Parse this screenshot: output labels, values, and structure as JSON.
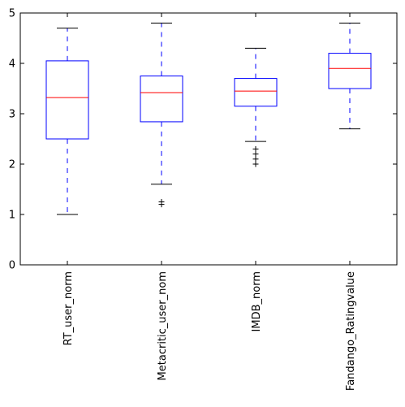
{
  "chart_data": {
    "type": "box",
    "title": "",
    "xlabel": "",
    "ylabel": "",
    "ylim": [
      0,
      5
    ],
    "yticks": [
      0,
      1,
      2,
      3,
      4,
      5
    ],
    "grid": false,
    "categories": [
      "RT_user_norm",
      "Metacritic_user_nom",
      "IMDB_norm",
      "Fandango_Ratingvalue"
    ],
    "boxes": [
      {
        "name": "RT_user_norm",
        "whisker_low": 1.0,
        "q1": 2.5,
        "median": 3.32,
        "q3": 4.05,
        "whisker_high": 4.7,
        "outliers": []
      },
      {
        "name": "Metacritic_user_nom",
        "whisker_low": 1.6,
        "q1": 2.84,
        "median": 3.42,
        "q3": 3.75,
        "whisker_high": 4.8,
        "outliers": [
          1.2,
          1.25
        ]
      },
      {
        "name": "IMDB_norm",
        "whisker_low": 2.45,
        "q1": 3.15,
        "median": 3.45,
        "q3": 3.7,
        "whisker_high": 4.3,
        "outliers": [
          2.0,
          2.1,
          2.2,
          2.3
        ]
      },
      {
        "name": "Fandango_Ratingvalue",
        "whisker_low": 2.7,
        "q1": 3.5,
        "median": 3.9,
        "q3": 4.2,
        "whisker_high": 4.8,
        "outliers": []
      }
    ],
    "colors": {
      "box": "#0000ff",
      "whisker": "#0000ff",
      "median": "#ff0000",
      "cap": "#000000",
      "outlier": "#000000",
      "axis": "#000000"
    }
  }
}
